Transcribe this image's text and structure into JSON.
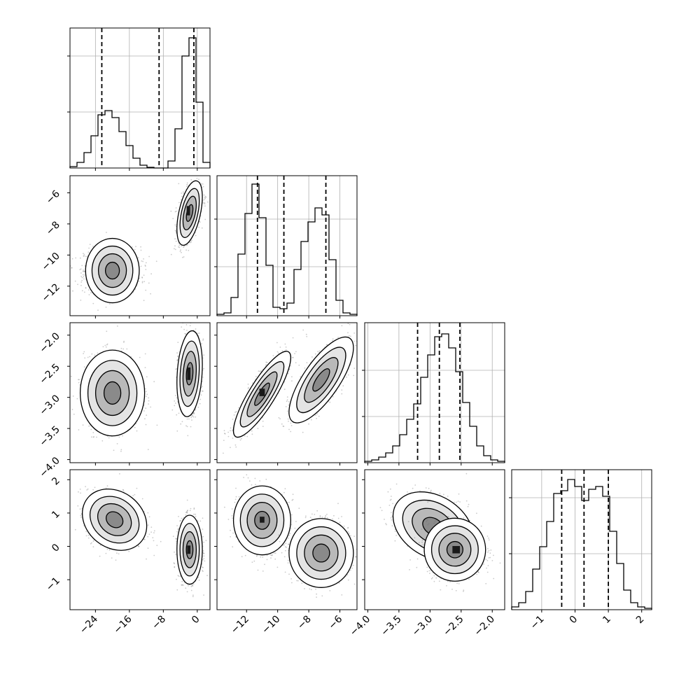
{
  "chart_data": {
    "type": "corner",
    "parameters": [
      {
        "range": [
          -30,
          3
        ],
        "ticks": [
          -24,
          -16,
          -8,
          0
        ],
        "tick_labels": [
          "−24",
          "−16",
          "−8",
          "0"
        ]
      },
      {
        "range": [
          -13.9,
          -4.9
        ],
        "ticks": [
          -12,
          -10,
          -8,
          -6
        ],
        "tick_labels": [
          "−12",
          "−10",
          "−8",
          "−6"
        ]
      },
      {
        "range": [
          -4.05,
          -1.8
        ],
        "ticks": [
          -4.0,
          -3.5,
          -3.0,
          -2.5,
          -2.0
        ],
        "tick_labels": [
          "−4.0",
          "−3.5",
          "−3.0",
          "−2.5",
          "−2.0"
        ]
      },
      {
        "range": [
          -1.9,
          2.3
        ],
        "ticks": [
          -1,
          0,
          1,
          2
        ],
        "tick_labels": [
          "−1",
          "0",
          "1",
          "2"
        ]
      }
    ],
    "histograms": [
      {
        "param": 0,
        "bin_edges": [
          -30.0,
          -28.35,
          -26.7,
          -25.05,
          -23.4,
          -21.75,
          -20.1,
          -18.45,
          -16.8,
          -15.15,
          -13.5,
          -11.85,
          -10.2,
          -8.55,
          -6.9,
          -5.25,
          -3.6,
          -1.95,
          -0.3,
          1.35,
          3.0
        ],
        "counts": [
          0.01,
          0.04,
          0.11,
          0.23,
          0.38,
          0.41,
          0.36,
          0.26,
          0.16,
          0.07,
          0.02,
          0.005,
          0.0,
          0.0,
          0.05,
          0.28,
          0.8,
          0.93,
          0.47,
          0.04
        ],
        "ymax": 1.0,
        "gridlines": [
          0.4,
          0.8
        ],
        "quantiles": [
          -22.5,
          -9.0,
          -0.8
        ]
      },
      {
        "param": 1,
        "bin_edges": [
          -13.9,
          -13.45,
          -13.0,
          -12.55,
          -12.1,
          -11.65,
          -11.2,
          -10.75,
          -10.3,
          -9.85,
          -9.4,
          -8.95,
          -8.5,
          -8.05,
          -7.6,
          -7.15,
          -6.7,
          -6.25,
          -5.8,
          -5.35,
          -4.9
        ],
        "counts": [
          0.01,
          0.02,
          0.13,
          0.44,
          0.73,
          0.94,
          0.7,
          0.36,
          0.06,
          0.05,
          0.09,
          0.33,
          0.53,
          0.67,
          0.77,
          0.72,
          0.4,
          0.11,
          0.02,
          0.01
        ],
        "ymax": 1.0,
        "gridlines": [
          0.35,
          0.69
        ],
        "quantiles": [
          -11.3,
          -9.6,
          -6.9
        ]
      },
      {
        "param": 2,
        "bin_edges": [
          -4.05,
          -3.9375,
          -3.825,
          -3.7125,
          -3.6,
          -3.4875,
          -3.375,
          -3.2625,
          -3.15,
          -3.0375,
          -2.925,
          -2.8125,
          -2.7,
          -2.5875,
          -2.475,
          -2.3625,
          -2.25,
          -2.1375,
          -2.025,
          -1.9125,
          -1.8
        ],
        "counts": [
          0.01,
          0.02,
          0.04,
          0.07,
          0.12,
          0.2,
          0.31,
          0.42,
          0.61,
          0.77,
          0.9,
          0.92,
          0.82,
          0.65,
          0.43,
          0.26,
          0.12,
          0.05,
          0.02,
          0.01
        ],
        "ymax": 1.0,
        "gridlines": [
          0.33,
          0.66
        ],
        "quantiles": [
          -3.2,
          -2.85,
          -2.52
        ]
      },
      {
        "param": 3,
        "bin_edges": [
          -1.9,
          -1.69,
          -1.48,
          -1.27,
          -1.06,
          -0.85,
          -0.64,
          -0.43,
          -0.22,
          -0.01,
          0.2,
          0.41,
          0.62,
          0.83,
          1.04,
          1.25,
          1.46,
          1.67,
          1.88,
          2.09,
          2.3
        ],
        "counts": [
          0.02,
          0.05,
          0.13,
          0.29,
          0.45,
          0.63,
          0.83,
          0.85,
          0.93,
          0.88,
          0.78,
          0.86,
          0.88,
          0.81,
          0.56,
          0.33,
          0.14,
          0.05,
          0.02,
          0.01
        ],
        "ymax": 1.0,
        "gridlines": [
          0.4,
          0.8
        ],
        "quantiles": [
          -0.4,
          0.27,
          1.0
        ]
      }
    ],
    "scatter_panels": [
      {
        "x_param": 0,
        "y_param": 1,
        "clusters": [
          {
            "center": [
              -20,
              -11.0
            ],
            "sigma": [
              3.3,
              0.75
            ],
            "rho": 0.0,
            "n": 1100
          },
          {
            "center": [
              -1.8,
              -7.3
            ],
            "sigma": [
              1.3,
              0.9
            ],
            "rho": 0.5,
            "n": 1100
          }
        ],
        "dark_cells": [
          [
            -2.1,
            -7.15,
            0.8,
            0.6
          ]
        ]
      },
      {
        "x_param": 0,
        "y_param": 2,
        "clusters": [
          {
            "center": [
              -20,
              -2.93
            ],
            "sigma": [
              3.3,
              0.3
            ],
            "rho": 0.0,
            "n": 1100
          },
          {
            "center": [
              -1.8,
              -2.62
            ],
            "sigma": [
              1.3,
              0.3
            ],
            "rho": 0.2,
            "n": 1100
          }
        ],
        "dark_cells": [
          [
            -2.0,
            -2.62,
            0.8,
            0.2
          ]
        ]
      },
      {
        "x_param": 1,
        "y_param": 2,
        "clusters": [
          {
            "center": [
              -11.0,
              -2.95
            ],
            "sigma": [
              0.8,
              0.3
            ],
            "rho": 0.85,
            "n": 1100
          },
          {
            "center": [
              -7.2,
              -2.72
            ],
            "sigma": [
              0.9,
              0.3
            ],
            "rho": 0.75,
            "n": 1100
          }
        ],
        "dark_cells": [
          [
            -11.0,
            -2.92,
            0.35,
            0.12
          ]
        ]
      },
      {
        "x_param": 0,
        "y_param": 3,
        "clusters": [
          {
            "center": [
              -19.5,
              0.8
            ],
            "sigma": [
              3.3,
              0.4
            ],
            "rho": -0.2,
            "n": 1100
          },
          {
            "center": [
              -1.8,
              -0.1
            ],
            "sigma": [
              1.3,
              0.45
            ],
            "rho": 0.0,
            "n": 1100
          }
        ],
        "dark_cells": [
          [
            -2.0,
            -0.1,
            0.8,
            0.25
          ]
        ]
      },
      {
        "x_param": 1,
        "y_param": 3,
        "clusters": [
          {
            "center": [
              -11.0,
              0.78
            ],
            "sigma": [
              0.8,
              0.45
            ],
            "rho": 0.0,
            "n": 1100
          },
          {
            "center": [
              -7.2,
              -0.2
            ],
            "sigma": [
              0.9,
              0.45
            ],
            "rho": 0.0,
            "n": 1100
          }
        ],
        "dark_cells": [
          [
            -11.0,
            0.8,
            0.3,
            0.18
          ]
        ]
      },
      {
        "x_param": 2,
        "y_param": 3,
        "clusters": [
          {
            "center": [
              -2.95,
              0.6
            ],
            "sigma": [
              0.28,
              0.45
            ],
            "rho": -0.3,
            "n": 1100
          },
          {
            "center": [
              -2.6,
              -0.1
            ],
            "sigma": [
              0.22,
              0.4
            ],
            "rho": 0.0,
            "n": 1100
          }
        ],
        "dark_cells": [
          [
            -2.58,
            -0.1,
            0.12,
            0.22
          ]
        ]
      }
    ],
    "xlabel": "",
    "ylabel": "",
    "title": ""
  }
}
